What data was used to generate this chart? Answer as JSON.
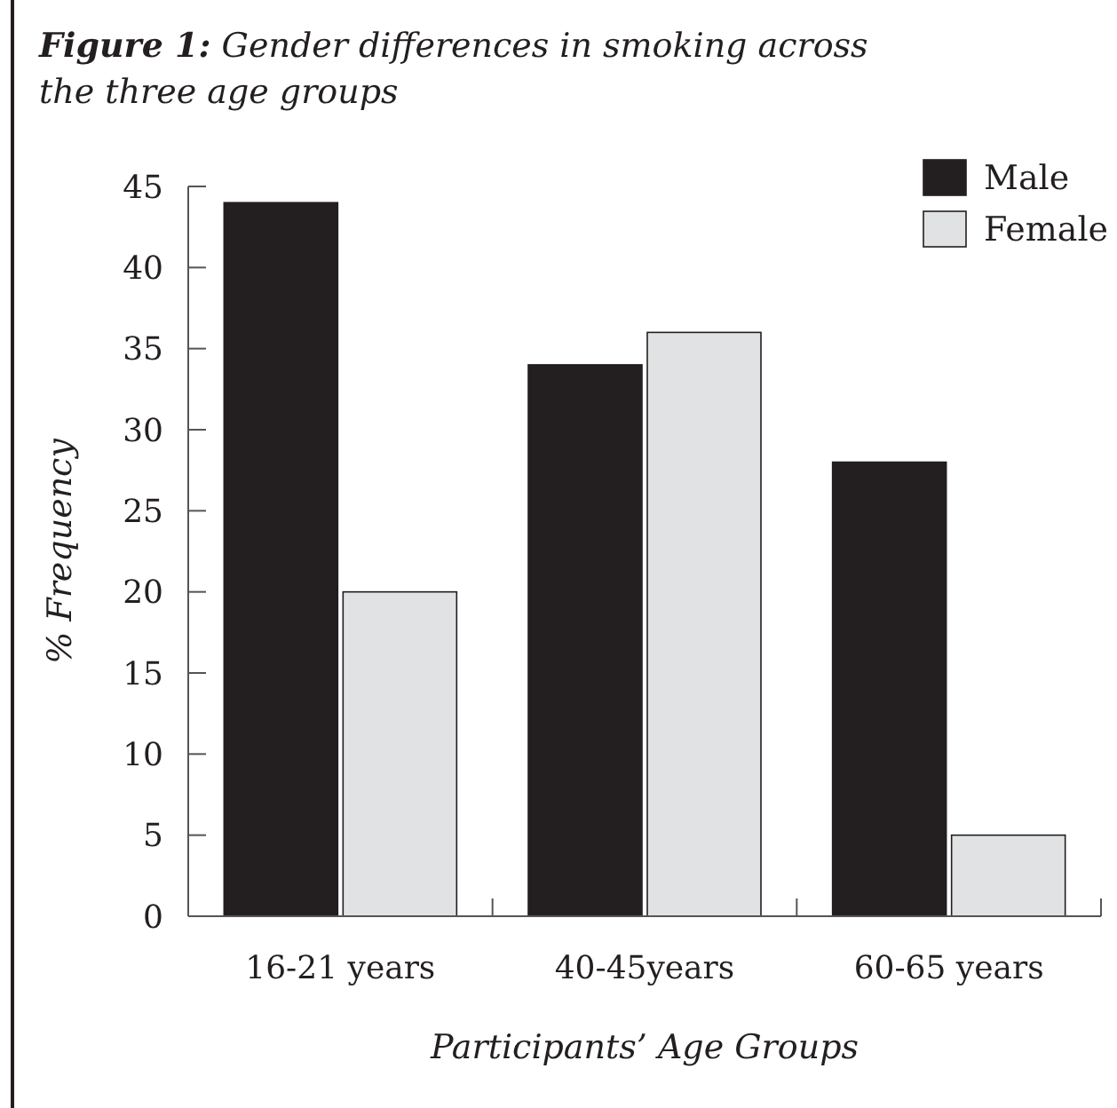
{
  "chart_data": {
    "type": "bar",
    "title": "Figure 1: Gender differences in smoking across the three age groups",
    "xlabel": "Participants’ Age Groups",
    "ylabel": "% Frequency",
    "categories": [
      "16-21 years",
      "40-45years",
      "60-65 years"
    ],
    "series": [
      {
        "name": "Male",
        "color": "#231f20",
        "values": [
          44,
          34,
          28
        ]
      },
      {
        "name": "Female",
        "color": "#e1e2e4",
        "values": [
          20,
          36,
          5
        ]
      }
    ],
    "ylim": [
      0,
      45
    ],
    "yticks": [
      0,
      5,
      10,
      15,
      20,
      25,
      30,
      35,
      40,
      45
    ],
    "grid": false,
    "legend": "top right"
  }
}
